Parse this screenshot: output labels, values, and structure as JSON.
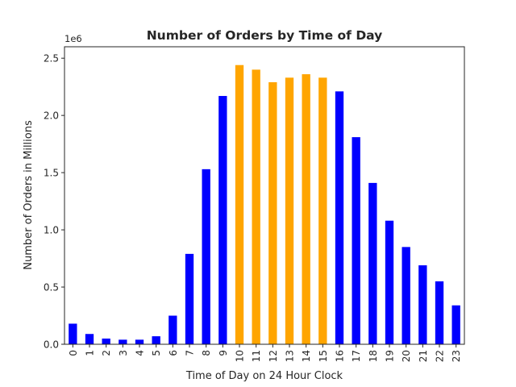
{
  "chart_data": {
    "type": "bar",
    "title": "Number of Orders by Time of Day",
    "xlabel": "Time of Day on 24 Hour Clock",
    "ylabel": "Number of Orders in Millions",
    "y_offset_label": "1e6",
    "ylim": [
      0,
      2.6
    ],
    "yticks": [
      0.0,
      0.5,
      1.0,
      1.5,
      2.0,
      2.5
    ],
    "ytick_labels": [
      "0.0",
      "0.5",
      "1.0",
      "1.5",
      "2.0",
      "2.5"
    ],
    "categories": [
      "0",
      "1",
      "2",
      "3",
      "4",
      "5",
      "6",
      "7",
      "8",
      "9",
      "10",
      "11",
      "12",
      "13",
      "14",
      "15",
      "16",
      "17",
      "18",
      "19",
      "20",
      "21",
      "22",
      "23"
    ],
    "values": [
      0.18,
      0.09,
      0.05,
      0.04,
      0.04,
      0.07,
      0.25,
      0.79,
      1.53,
      2.17,
      2.44,
      2.4,
      2.29,
      2.33,
      2.36,
      2.33,
      2.21,
      1.81,
      1.41,
      1.08,
      0.85,
      0.69,
      0.55,
      0.34
    ],
    "colors": [
      "#0000ff",
      "#0000ff",
      "#0000ff",
      "#0000ff",
      "#0000ff",
      "#0000ff",
      "#0000ff",
      "#0000ff",
      "#0000ff",
      "#0000ff",
      "#ffa500",
      "#ffa500",
      "#ffa500",
      "#ffa500",
      "#ffa500",
      "#ffa500",
      "#0000ff",
      "#0000ff",
      "#0000ff",
      "#0000ff",
      "#0000ff",
      "#0000ff",
      "#0000ff",
      "#0000ff"
    ],
    "grid": false,
    "legend": "none"
  }
}
